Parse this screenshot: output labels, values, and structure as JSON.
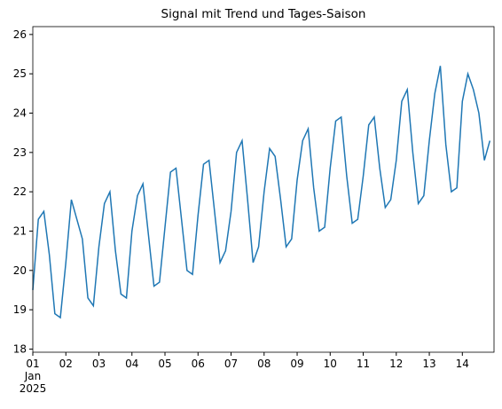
{
  "chart_data": {
    "type": "line",
    "title": "Signal mit Trend und Tages-Saison",
    "x": [
      0,
      4,
      8,
      12,
      16,
      20,
      24,
      28,
      32,
      36,
      40,
      44,
      48,
      52,
      56,
      60,
      64,
      68,
      72,
      76,
      80,
      84,
      88,
      92,
      96,
      100,
      104,
      108,
      112,
      116,
      120,
      124,
      128,
      132,
      136,
      140,
      144,
      148,
      152,
      156,
      160,
      164,
      168,
      172,
      176,
      180,
      184,
      188,
      192,
      196,
      200,
      204,
      208,
      212,
      216,
      220,
      224,
      228,
      232,
      236,
      240,
      244,
      248,
      252,
      256,
      260,
      264,
      268,
      272,
      276,
      280,
      284,
      288,
      292,
      296,
      300,
      304,
      308,
      312,
      316,
      320,
      324,
      328,
      332
    ],
    "series": [
      {
        "name": "Signal",
        "color": "#1f77b4",
        "values": [
          19.5,
          21.3,
          21.5,
          20.4,
          18.9,
          18.8,
          20.2,
          21.8,
          21.3,
          20.8,
          19.3,
          19.1,
          20.6,
          21.7,
          22.0,
          20.5,
          19.4,
          19.3,
          21.0,
          21.9,
          22.2,
          20.9,
          19.6,
          19.7,
          21.1,
          22.5,
          22.6,
          21.3,
          20.0,
          19.9,
          21.4,
          22.7,
          22.8,
          21.5,
          20.2,
          20.5,
          21.5,
          23.0,
          23.3,
          21.8,
          20.2,
          20.6,
          22.0,
          23.1,
          22.9,
          21.8,
          20.6,
          20.8,
          22.3,
          23.3,
          23.6,
          22.1,
          21.0,
          21.1,
          22.6,
          23.8,
          23.9,
          22.4,
          21.2,
          21.3,
          22.4,
          23.7,
          23.9,
          22.6,
          21.6,
          21.8,
          22.8,
          24.3,
          24.6,
          23.0,
          21.7,
          21.9,
          23.3,
          24.5,
          25.2,
          23.2,
          22.0,
          22.1,
          24.3,
          25.0,
          24.6,
          24.0,
          22.8,
          23.3
        ]
      }
    ],
    "xlim": [
      0,
      335
    ],
    "ylim": [
      17.92,
      26.2
    ],
    "xticks": [
      {
        "value": 0,
        "label": "01"
      },
      {
        "value": 24,
        "label": "02"
      },
      {
        "value": 48,
        "label": "03"
      },
      {
        "value": 72,
        "label": "04"
      },
      {
        "value": 96,
        "label": "05"
      },
      {
        "value": 120,
        "label": "06"
      },
      {
        "value": 144,
        "label": "07"
      },
      {
        "value": 168,
        "label": "08"
      },
      {
        "value": 192,
        "label": "09"
      },
      {
        "value": 216,
        "label": "10"
      },
      {
        "value": 240,
        "label": "11"
      },
      {
        "value": 264,
        "label": "12"
      },
      {
        "value": 288,
        "label": "13"
      },
      {
        "value": 312,
        "label": "14"
      }
    ],
    "x_month_label": "Jan",
    "x_year_label": "2025",
    "yticks": [
      18,
      19,
      20,
      21,
      22,
      23,
      24,
      25,
      26
    ]
  }
}
